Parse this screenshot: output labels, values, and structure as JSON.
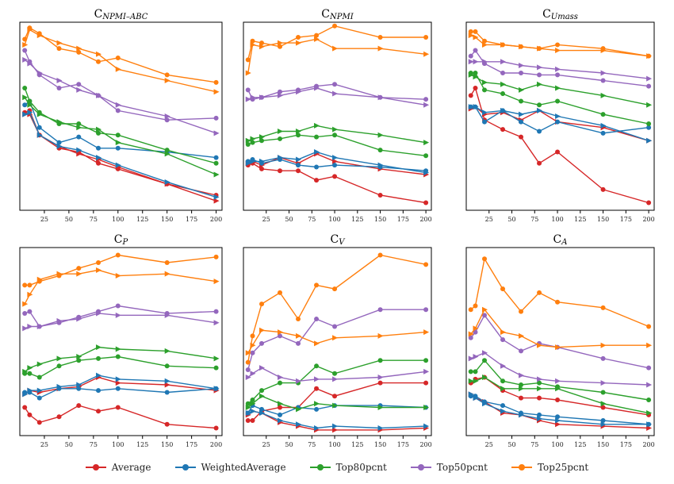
{
  "chart_data": [
    {
      "type": "line",
      "title_main": "C",
      "title_sub": "NPMI–ABC",
      "x": [
        5,
        10,
        20,
        40,
        60,
        80,
        100,
        150,
        200
      ],
      "ylim": [
        0,
        1
      ],
      "xticks": [
        25,
        50,
        75,
        100,
        125,
        150,
        175,
        200
      ],
      "series": [
        {
          "name": "Average",
          "marker": "o",
          "values": [
            0.52,
            0.53,
            0.4,
            0.33,
            0.31,
            0.25,
            0.22,
            0.14,
            0.08
          ]
        },
        {
          "name": "Average",
          "marker": ">",
          "values": [
            0.51,
            0.51,
            0.4,
            0.34,
            0.3,
            0.27,
            0.23,
            0.14,
            0.05
          ]
        },
        {
          "name": "WeightedAverage",
          "marker": "o",
          "values": [
            0.56,
            0.58,
            0.44,
            0.36,
            0.39,
            0.33,
            0.33,
            0.31,
            0.28
          ]
        },
        {
          "name": "WeightedAverage",
          "marker": ">",
          "values": [
            0.51,
            0.52,
            0.4,
            0.34,
            0.32,
            0.28,
            0.24,
            0.15,
            0.07
          ]
        },
        {
          "name": "Top80pcnt",
          "marker": "o",
          "values": [
            0.65,
            0.58,
            0.52,
            0.46,
            0.46,
            0.41,
            0.4,
            0.32,
            0.25
          ]
        },
        {
          "name": "Top80pcnt",
          "marker": ">",
          "values": [
            0.6,
            0.56,
            0.51,
            0.47,
            0.44,
            0.43,
            0.36,
            0.3,
            0.19
          ]
        },
        {
          "name": "Top50pcnt",
          "marker": "o",
          "values": [
            0.85,
            0.79,
            0.72,
            0.65,
            0.67,
            0.61,
            0.53,
            0.48,
            0.49
          ]
        },
        {
          "name": "Top50pcnt",
          "marker": ">",
          "values": [
            0.8,
            0.78,
            0.73,
            0.69,
            0.64,
            0.61,
            0.56,
            0.5,
            0.41
          ]
        },
        {
          "name": "Top25pcnt",
          "marker": "o",
          "values": [
            0.91,
            0.97,
            0.94,
            0.86,
            0.84,
            0.79,
            0.81,
            0.72,
            0.68
          ]
        },
        {
          "name": "Top25pcnt",
          "marker": ">",
          "values": [
            0.88,
            0.96,
            0.93,
            0.89,
            0.86,
            0.83,
            0.75,
            0.69,
            0.63
          ]
        }
      ]
    },
    {
      "type": "line",
      "title_main": "C",
      "title_sub": "NPMI",
      "x": [
        5,
        10,
        20,
        40,
        60,
        80,
        100,
        150,
        200
      ],
      "ylim": [
        0,
        1
      ],
      "xticks": [
        25,
        50,
        75,
        100,
        125,
        150,
        175,
        200
      ],
      "series": [
        {
          "name": "Average",
          "marker": "o",
          "values": [
            0.24,
            0.25,
            0.22,
            0.21,
            0.21,
            0.16,
            0.18,
            0.08,
            0.04
          ]
        },
        {
          "name": "Average",
          "marker": ">",
          "values": [
            0.25,
            0.26,
            0.24,
            0.28,
            0.25,
            0.3,
            0.26,
            0.22,
            0.19
          ]
        },
        {
          "name": "WeightedAverage",
          "marker": "o",
          "values": [
            0.26,
            0.27,
            0.25,
            0.27,
            0.24,
            0.23,
            0.24,
            0.23,
            0.21
          ]
        },
        {
          "name": "WeightedAverage",
          "marker": ">",
          "values": [
            0.25,
            0.26,
            0.26,
            0.28,
            0.27,
            0.31,
            0.28,
            0.24,
            0.2
          ]
        },
        {
          "name": "Top80pcnt",
          "marker": "o",
          "values": [
            0.35,
            0.36,
            0.37,
            0.38,
            0.4,
            0.39,
            0.4,
            0.32,
            0.29
          ]
        },
        {
          "name": "Top80pcnt",
          "marker": ">",
          "values": [
            0.37,
            0.38,
            0.39,
            0.42,
            0.42,
            0.45,
            0.43,
            0.4,
            0.36
          ]
        },
        {
          "name": "Top50pcnt",
          "marker": "o",
          "values": [
            0.64,
            0.59,
            0.6,
            0.63,
            0.64,
            0.66,
            0.67,
            0.6,
            0.59
          ]
        },
        {
          "name": "Top50pcnt",
          "marker": ">",
          "values": [
            0.59,
            0.6,
            0.6,
            0.61,
            0.63,
            0.65,
            0.62,
            0.6,
            0.56
          ]
        },
        {
          "name": "Top25pcnt",
          "marker": "o",
          "values": [
            0.8,
            0.9,
            0.89,
            0.87,
            0.92,
            0.93,
            0.98,
            0.92,
            0.92
          ]
        },
        {
          "name": "Top25pcnt",
          "marker": ">",
          "values": [
            0.73,
            0.88,
            0.87,
            0.89,
            0.89,
            0.91,
            0.86,
            0.86,
            0.83
          ]
        }
      ]
    },
    {
      "type": "line",
      "title_main": "C",
      "title_sub": "Umass",
      "x": [
        5,
        10,
        20,
        40,
        60,
        80,
        100,
        150,
        200
      ],
      "ylim": [
        0,
        1
      ],
      "xticks": [
        25,
        50,
        75,
        100,
        125,
        150,
        175,
        200
      ],
      "series": [
        {
          "name": "Average",
          "marker": "o",
          "values": [
            0.61,
            0.65,
            0.48,
            0.43,
            0.39,
            0.25,
            0.31,
            0.11,
            0.04
          ]
        },
        {
          "name": "Average",
          "marker": ">",
          "values": [
            0.54,
            0.55,
            0.51,
            0.52,
            0.48,
            0.53,
            0.47,
            0.44,
            0.37
          ]
        },
        {
          "name": "WeightedAverage",
          "marker": "o",
          "values": [
            0.55,
            0.55,
            0.47,
            0.53,
            0.47,
            0.42,
            0.47,
            0.41,
            0.44
          ]
        },
        {
          "name": "WeightedAverage",
          "marker": ">",
          "values": [
            0.55,
            0.55,
            0.52,
            0.53,
            0.51,
            0.53,
            0.5,
            0.45,
            0.37
          ]
        },
        {
          "name": "Top80pcnt",
          "marker": "o",
          "values": [
            0.73,
            0.73,
            0.64,
            0.62,
            0.58,
            0.56,
            0.58,
            0.51,
            0.46
          ]
        },
        {
          "name": "Top80pcnt",
          "marker": ">",
          "values": [
            0.72,
            0.71,
            0.68,
            0.67,
            0.64,
            0.67,
            0.65,
            0.61,
            0.56
          ]
        },
        {
          "name": "Top50pcnt",
          "marker": "o",
          "values": [
            0.82,
            0.85,
            0.78,
            0.73,
            0.73,
            0.72,
            0.72,
            0.69,
            0.66
          ]
        },
        {
          "name": "Top50pcnt",
          "marker": ">",
          "values": [
            0.79,
            0.79,
            0.79,
            0.79,
            0.77,
            0.76,
            0.75,
            0.73,
            0.7
          ]
        },
        {
          "name": "Top25pcnt",
          "marker": "o",
          "values": [
            0.95,
            0.95,
            0.9,
            0.88,
            0.87,
            0.86,
            0.88,
            0.86,
            0.82
          ]
        },
        {
          "name": "Top25pcnt",
          "marker": ">",
          "values": [
            0.93,
            0.92,
            0.88,
            0.88,
            0.87,
            0.86,
            0.85,
            0.85,
            0.82
          ]
        }
      ]
    },
    {
      "type": "line",
      "title_main": "C",
      "title_sub": "P",
      "x": [
        5,
        10,
        20,
        40,
        60,
        80,
        100,
        150,
        200
      ],
      "ylim": [
        0,
        1
      ],
      "xticks": [
        25,
        50,
        75,
        100,
        125,
        150,
        175,
        200
      ],
      "series": [
        {
          "name": "Average",
          "marker": "o",
          "values": [
            0.15,
            0.11,
            0.07,
            0.1,
            0.16,
            0.13,
            0.15,
            0.06,
            0.04
          ]
        },
        {
          "name": "Average",
          "marker": ">",
          "values": [
            0.22,
            0.24,
            0.23,
            0.25,
            0.26,
            0.31,
            0.28,
            0.27,
            0.24
          ]
        },
        {
          "name": "WeightedAverage",
          "marker": "o",
          "values": [
            0.23,
            0.23,
            0.2,
            0.25,
            0.25,
            0.24,
            0.25,
            0.23,
            0.25
          ]
        },
        {
          "name": "WeightedAverage",
          "marker": ">",
          "values": [
            0.22,
            0.24,
            0.24,
            0.26,
            0.27,
            0.32,
            0.3,
            0.29,
            0.25
          ]
        },
        {
          "name": "Top80pcnt",
          "marker": "o",
          "values": [
            0.33,
            0.33,
            0.31,
            0.37,
            0.4,
            0.41,
            0.42,
            0.37,
            0.36
          ]
        },
        {
          "name": "Top80pcnt",
          "marker": ">",
          "values": [
            0.34,
            0.36,
            0.38,
            0.41,
            0.42,
            0.47,
            0.46,
            0.45,
            0.41
          ]
        },
        {
          "name": "Top50pcnt",
          "marker": "o",
          "values": [
            0.65,
            0.66,
            0.58,
            0.6,
            0.63,
            0.66,
            0.69,
            0.65,
            0.66
          ]
        },
        {
          "name": "Top50pcnt",
          "marker": ">",
          "values": [
            0.57,
            0.58,
            0.58,
            0.61,
            0.62,
            0.65,
            0.64,
            0.64,
            0.6
          ]
        },
        {
          "name": "Top25pcnt",
          "marker": "o",
          "values": [
            0.8,
            0.8,
            0.82,
            0.85,
            0.89,
            0.92,
            0.96,
            0.92,
            0.95
          ]
        },
        {
          "name": "Top25pcnt",
          "marker": ">",
          "values": [
            0.7,
            0.75,
            0.83,
            0.86,
            0.86,
            0.88,
            0.85,
            0.86,
            0.82
          ]
        }
      ]
    },
    {
      "type": "line",
      "title_main": "C",
      "title_sub": "V",
      "x": [
        5,
        10,
        20,
        40,
        60,
        80,
        100,
        150,
        200
      ],
      "ylim": [
        0,
        1
      ],
      "xticks": [
        25,
        50,
        75,
        100,
        125,
        150,
        175,
        200
      ],
      "series": [
        {
          "name": "Average",
          "marker": "o",
          "values": [
            0.08,
            0.08,
            0.13,
            0.15,
            0.15,
            0.25,
            0.21,
            0.28,
            0.28
          ]
        },
        {
          "name": "Average",
          "marker": ">",
          "values": [
            0.11,
            0.13,
            0.12,
            0.07,
            0.05,
            0.03,
            0.03,
            0.03,
            0.04
          ]
        },
        {
          "name": "WeightedAverage",
          "marker": "o",
          "values": [
            0.12,
            0.16,
            0.14,
            0.11,
            0.15,
            0.14,
            0.16,
            0.16,
            0.15
          ]
        },
        {
          "name": "WeightedAverage",
          "marker": ">",
          "values": [
            0.12,
            0.13,
            0.12,
            0.08,
            0.06,
            0.04,
            0.05,
            0.04,
            0.05
          ]
        },
        {
          "name": "Top80pcnt",
          "marker": "o",
          "values": [
            0.17,
            0.19,
            0.24,
            0.28,
            0.28,
            0.37,
            0.33,
            0.4,
            0.4
          ]
        },
        {
          "name": "Top80pcnt",
          "marker": ">",
          "values": [
            0.15,
            0.17,
            0.21,
            0.17,
            0.14,
            0.17,
            0.16,
            0.15,
            0.15
          ]
        },
        {
          "name": "Top50pcnt",
          "marker": "o",
          "values": [
            0.35,
            0.44,
            0.49,
            0.53,
            0.49,
            0.62,
            0.58,
            0.67,
            0.67
          ]
        },
        {
          "name": "Top50pcnt",
          "marker": ">",
          "values": [
            0.31,
            0.33,
            0.36,
            0.31,
            0.29,
            0.3,
            0.3,
            0.31,
            0.34
          ]
        },
        {
          "name": "Top25pcnt",
          "marker": "o",
          "values": [
            0.39,
            0.53,
            0.7,
            0.76,
            0.62,
            0.8,
            0.78,
            0.96,
            0.91
          ]
        },
        {
          "name": "Top25pcnt",
          "marker": ">",
          "values": [
            0.44,
            0.48,
            0.56,
            0.55,
            0.53,
            0.49,
            0.52,
            0.53,
            0.55
          ]
        }
      ]
    },
    {
      "type": "line",
      "title_main": "C",
      "title_sub": "A",
      "x": [
        5,
        10,
        20,
        40,
        60,
        80,
        100,
        150,
        200
      ],
      "ylim": [
        0,
        1
      ],
      "xticks": [
        25,
        50,
        75,
        100,
        125,
        150,
        175,
        200
      ],
      "series": [
        {
          "name": "Average",
          "marker": "o",
          "values": [
            0.28,
            0.3,
            0.31,
            0.24,
            0.2,
            0.2,
            0.19,
            0.15,
            0.11
          ]
        },
        {
          "name": "Average",
          "marker": ">",
          "values": [
            0.22,
            0.2,
            0.18,
            0.12,
            0.11,
            0.08,
            0.06,
            0.05,
            0.04
          ]
        },
        {
          "name": "WeightedAverage",
          "marker": "o",
          "values": [
            0.21,
            0.21,
            0.18,
            0.16,
            0.12,
            0.11,
            0.1,
            0.08,
            0.06
          ]
        },
        {
          "name": "WeightedAverage",
          "marker": ">",
          "values": [
            0.22,
            0.2,
            0.17,
            0.13,
            0.11,
            0.09,
            0.08,
            0.06,
            0.06
          ]
        },
        {
          "name": "Top80pcnt",
          "marker": "o",
          "values": [
            0.34,
            0.34,
            0.4,
            0.29,
            0.27,
            0.28,
            0.26,
            0.23,
            0.19
          ]
        },
        {
          "name": "Top80pcnt",
          "marker": ">",
          "values": [
            0.29,
            0.29,
            0.31,
            0.25,
            0.25,
            0.25,
            0.25,
            0.17,
            0.12
          ]
        },
        {
          "name": "Top50pcnt",
          "marker": "o",
          "values": [
            0.52,
            0.55,
            0.64,
            0.51,
            0.45,
            0.49,
            0.47,
            0.41,
            0.36
          ]
        },
        {
          "name": "Top50pcnt",
          "marker": ">",
          "values": [
            0.41,
            0.42,
            0.44,
            0.37,
            0.32,
            0.3,
            0.29,
            0.28,
            0.27
          ]
        },
        {
          "name": "Top25pcnt",
          "marker": "o",
          "values": [
            0.67,
            0.69,
            0.94,
            0.78,
            0.66,
            0.76,
            0.71,
            0.68,
            0.58
          ]
        },
        {
          "name": "Top25pcnt",
          "marker": ">",
          "values": [
            0.54,
            0.57,
            0.67,
            0.55,
            0.53,
            0.48,
            0.47,
            0.48,
            0.48
          ]
        }
      ]
    }
  ],
  "legend": [
    {
      "label": "Average",
      "color": "#d62728"
    },
    {
      "label": "WeightedAverage",
      "color": "#1f77b4"
    },
    {
      "label": "Top80pcnt",
      "color": "#2ca02c"
    },
    {
      "label": "Top50pcnt",
      "color": "#9467bd"
    },
    {
      "label": "Top25pcnt",
      "color": "#ff7f0e"
    }
  ],
  "colors": {
    "Average": "#d62728",
    "WeightedAverage": "#1f77b4",
    "Top80pcnt": "#2ca02c",
    "Top50pcnt": "#9467bd",
    "Top25pcnt": "#ff7f0e"
  }
}
